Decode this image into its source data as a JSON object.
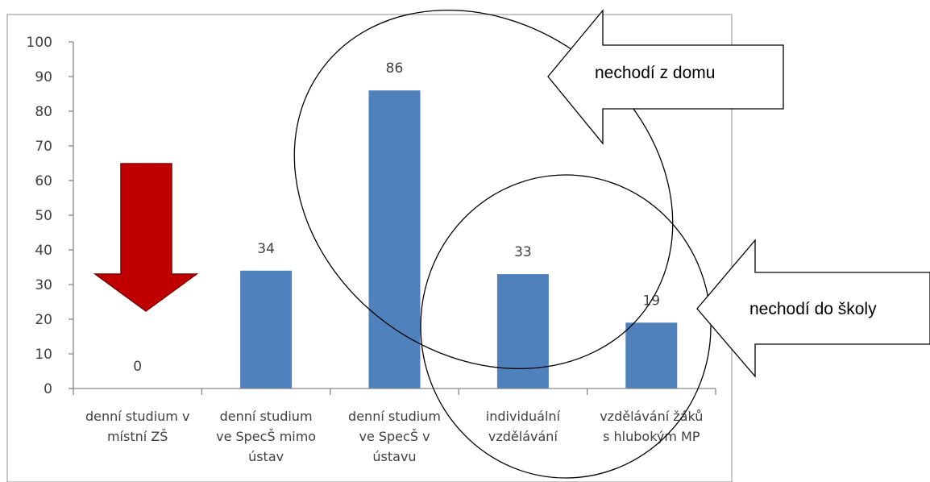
{
  "chart_data": {
    "type": "bar",
    "categories": [
      [
        "denní studium v",
        "místní ZŠ"
      ],
      [
        "denní studium",
        "ve SpecŠ mimo",
        "ústav"
      ],
      [
        "denní studium",
        "ve SpecŠ v",
        "ústavu"
      ],
      [
        "individuální",
        "vzdělávání"
      ],
      [
        "vzdělávání žáků",
        "s hlubokým MP"
      ]
    ],
    "values": [
      0,
      34,
      86,
      33,
      19
    ],
    "data_labels": [
      "0",
      "34",
      "86",
      "33",
      "19"
    ],
    "yticks": [
      "0",
      "10",
      "20",
      "30",
      "40",
      "50",
      "60",
      "70",
      "80",
      "90",
      "100"
    ],
    "ylim": [
      0,
      100
    ],
    "grid": false,
    "bar_color": "#4f81bd",
    "annotations": {
      "arrow_callout_1": "nechodí z domu",
      "arrow_callout_2": "nechodí do školy",
      "down_arrow_color": "#c00000"
    }
  }
}
